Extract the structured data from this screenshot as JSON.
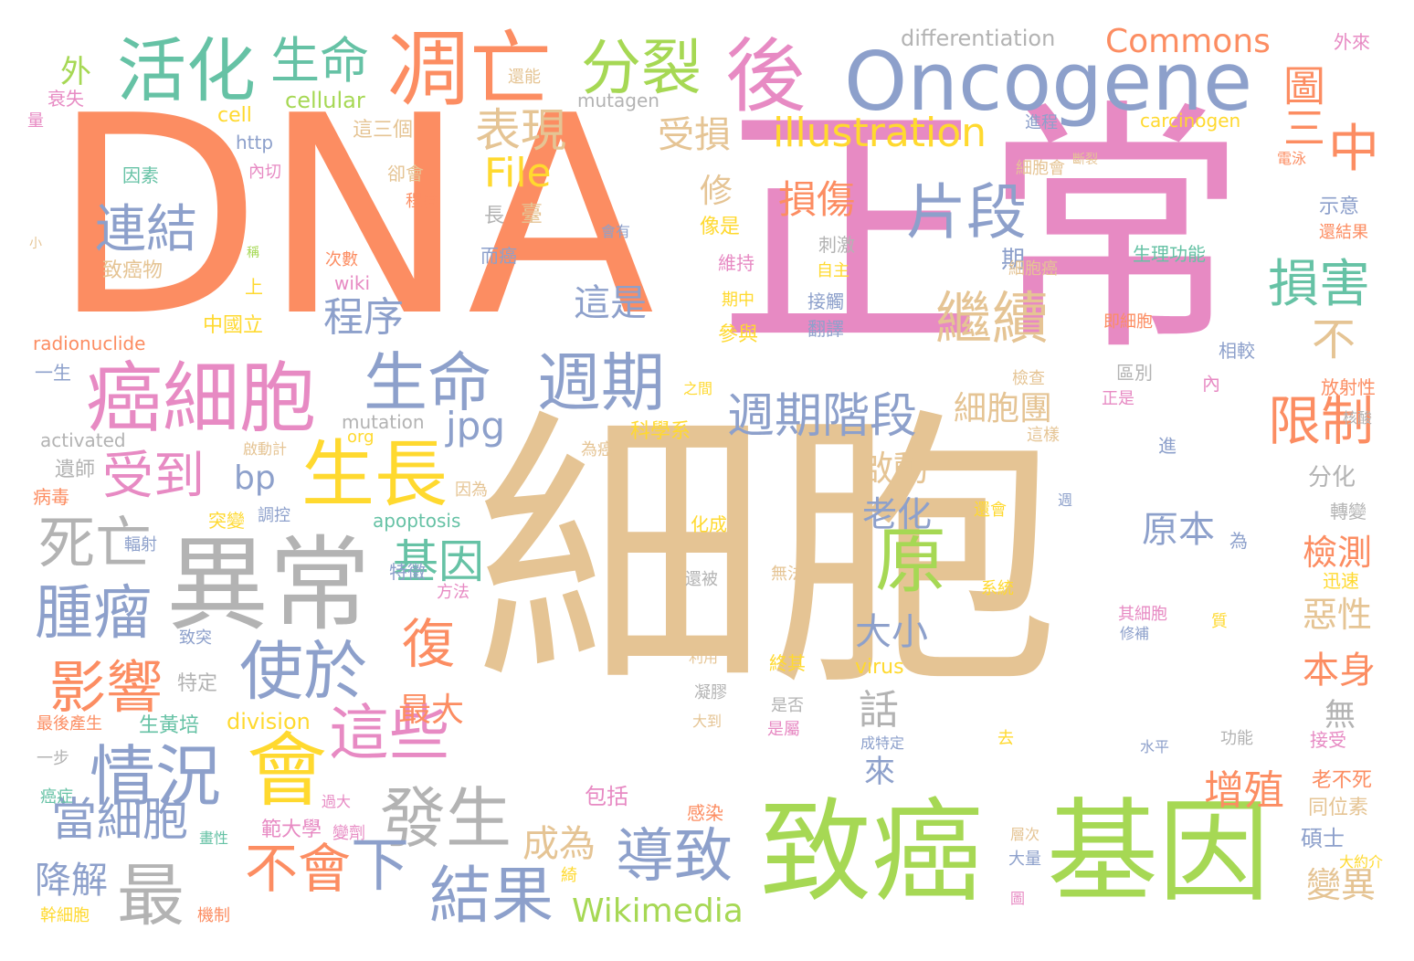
{
  "palette": {
    "orange": "#fc8d62",
    "green": "#66c2a5",
    "blue": "#8da0cb",
    "pink": "#e78ac3",
    "lime": "#a6d854",
    "yellow": "#ffd92f",
    "tan": "#e5c494",
    "gray": "#b3b3b3"
  },
  "words": [
    {
      "text": "細胞",
      "color": "tan"
    },
    {
      "text": "DNA",
      "color": "orange"
    },
    {
      "text": "正常",
      "color": "pink"
    },
    {
      "text": "致癌",
      "color": "lime"
    },
    {
      "text": "基因",
      "color": "lime"
    },
    {
      "text": "Oncogene",
      "color": "blue"
    },
    {
      "text": "異常",
      "color": "gray"
    },
    {
      "text": "癌細胞",
      "color": "pink"
    },
    {
      "text": "凋亡",
      "color": "orange"
    },
    {
      "text": "活化",
      "color": "green"
    },
    {
      "text": "後",
      "color": "pink"
    },
    {
      "text": "生命",
      "color": "blue"
    },
    {
      "text": "週期",
      "color": "blue"
    },
    {
      "text": "會",
      "color": "yellow"
    },
    {
      "text": "使於",
      "color": "blue"
    },
    {
      "text": "生長",
      "color": "yellow"
    },
    {
      "text": "情況",
      "color": "blue"
    },
    {
      "text": "發生",
      "color": "gray"
    },
    {
      "text": "這些",
      "color": "pink"
    },
    {
      "text": "結果",
      "color": "blue"
    },
    {
      "text": "導致",
      "color": "blue"
    },
    {
      "text": "最",
      "color": "gray"
    },
    {
      "text": "不會",
      "color": "orange"
    },
    {
      "text": "下",
      "color": "blue"
    },
    {
      "text": "腫瘤",
      "color": "blue"
    },
    {
      "text": "影響",
      "color": "orange"
    },
    {
      "text": "死亡",
      "color": "gray"
    },
    {
      "text": "受到",
      "color": "pink"
    },
    {
      "text": "原",
      "color": "lime"
    },
    {
      "text": "片段",
      "color": "blue"
    },
    {
      "text": "繼續",
      "color": "tan"
    },
    {
      "text": "週期階段",
      "color": "blue"
    },
    {
      "text": "限制",
      "color": "orange"
    },
    {
      "text": "損害",
      "color": "green"
    },
    {
      "text": "分裂",
      "color": "lime"
    },
    {
      "text": "生命",
      "color": "green"
    },
    {
      "text": "表現",
      "color": "tan"
    },
    {
      "text": "illustration",
      "color": "yellow"
    },
    {
      "text": "連結",
      "color": "blue"
    },
    {
      "text": "中",
      "color": "orange"
    },
    {
      "text": "File",
      "color": "yellow"
    },
    {
      "text": "jpg",
      "color": "blue"
    },
    {
      "text": "Wikimedia",
      "color": "lime"
    },
    {
      "text": "Commons",
      "color": "orange"
    },
    {
      "text": "基因",
      "color": "green"
    },
    {
      "text": "復",
      "color": "orange"
    },
    {
      "text": "當細胞",
      "color": "blue"
    },
    {
      "text": "圖三",
      "color": "orange"
    },
    {
      "text": "損傷",
      "color": "orange"
    },
    {
      "text": "不",
      "color": "tan"
    },
    {
      "text": "受損",
      "color": "tan"
    },
    {
      "text": "增殖",
      "color": "orange"
    },
    {
      "text": "程序",
      "color": "blue"
    },
    {
      "text": "這是",
      "color": "blue"
    },
    {
      "text": "細胞團",
      "color": "tan"
    },
    {
      "text": "原本",
      "color": "blue"
    },
    {
      "text": "檢測",
      "color": "orange"
    },
    {
      "text": "惡性",
      "color": "tan"
    },
    {
      "text": "本身",
      "color": "orange"
    },
    {
      "text": "大小",
      "color": "blue"
    },
    {
      "text": "最大",
      "color": "orange"
    },
    {
      "text": "老化",
      "color": "blue"
    },
    {
      "text": "啟動",
      "color": "tan"
    },
    {
      "text": "話",
      "color": "gray"
    },
    {
      "text": "成為",
      "color": "tan"
    },
    {
      "text": "降解",
      "color": "blue"
    },
    {
      "text": "變異",
      "color": "tan"
    },
    {
      "text": "bp",
      "color": "blue"
    },
    {
      "text": "外",
      "color": "lime"
    },
    {
      "text": "修",
      "color": "tan"
    },
    {
      "text": "來",
      "color": "blue"
    },
    {
      "text": "無",
      "color": "gray"
    },
    {
      "text": "分化",
      "color": "gray"
    },
    {
      "text": "differentiation",
      "color": "gray"
    },
    {
      "text": "cellular",
      "color": "lime"
    },
    {
      "text": "cell",
      "color": "yellow"
    },
    {
      "text": "http",
      "color": "blue"
    },
    {
      "text": "carcinogen",
      "color": "yellow"
    },
    {
      "text": "mutagen",
      "color": "gray"
    },
    {
      "text": "apoptosis",
      "color": "green"
    },
    {
      "text": "division",
      "color": "yellow"
    },
    {
      "text": "virus",
      "color": "yellow"
    },
    {
      "text": "mutation",
      "color": "gray"
    },
    {
      "text": "activated",
      "color": "gray"
    },
    {
      "text": "radionuclide",
      "color": "orange"
    },
    {
      "text": "wiki",
      "color": "pink"
    },
    {
      "text": "org",
      "color": "yellow"
    },
    {
      "text": "致癌物",
      "color": "tan"
    },
    {
      "text": "中國立",
      "color": "yellow"
    },
    {
      "text": "科學系",
      "color": "yellow"
    },
    {
      "text": "範大學",
      "color": "pink"
    },
    {
      "text": "生黃培",
      "color": "green"
    },
    {
      "text": "這三個",
      "color": "tan"
    },
    {
      "text": "像是",
      "color": "yellow"
    },
    {
      "text": "維持",
      "color": "pink"
    },
    {
      "text": "期中",
      "color": "yellow"
    },
    {
      "text": "參與",
      "color": "yellow"
    },
    {
      "text": "接觸",
      "color": "blue"
    },
    {
      "text": "翻譯",
      "color": "blue"
    },
    {
      "text": "刺激",
      "color": "gray"
    },
    {
      "text": "自主",
      "color": "yellow"
    },
    {
      "text": "期",
      "color": "blue"
    },
    {
      "text": "細胞會",
      "color": "tan"
    },
    {
      "text": "細胞癌",
      "color": "tan"
    },
    {
      "text": "生理功能",
      "color": "green"
    },
    {
      "text": "即細胞",
      "color": "orange"
    },
    {
      "text": "相較",
      "color": "blue"
    },
    {
      "text": "區別",
      "color": "gray"
    },
    {
      "text": "檢查",
      "color": "tan"
    },
    {
      "text": "正是",
      "color": "pink"
    },
    {
      "text": "這樣",
      "color": "tan"
    },
    {
      "text": "放射性",
      "color": "orange"
    },
    {
      "text": "核酸",
      "color": "gray"
    },
    {
      "text": "示意",
      "color": "blue"
    },
    {
      "text": "還結果",
      "color": "orange"
    },
    {
      "text": "外來",
      "color": "pink"
    },
    {
      "text": "進程",
      "color": "blue"
    },
    {
      "text": "電泳",
      "color": "orange"
    },
    {
      "text": "轉變",
      "color": "gray"
    },
    {
      "text": "迅速",
      "color": "yellow"
    },
    {
      "text": "老不死",
      "color": "orange"
    },
    {
      "text": "同位素",
      "color": "tan"
    },
    {
      "text": "碩士",
      "color": "blue"
    },
    {
      "text": "大約介",
      "color": "yellow"
    },
    {
      "text": "接受",
      "color": "pink"
    },
    {
      "text": "功能",
      "color": "gray"
    },
    {
      "text": "水平",
      "color": "blue"
    },
    {
      "text": "層次",
      "color": "tan"
    },
    {
      "text": "大量",
      "color": "blue"
    },
    {
      "text": "其細胞",
      "color": "pink"
    },
    {
      "text": "修補",
      "color": "blue"
    },
    {
      "text": "系統",
      "color": "yellow"
    },
    {
      "text": "還會",
      "color": "yellow"
    },
    {
      "text": "終其",
      "color": "yellow"
    },
    {
      "text": "是否",
      "color": "gray"
    },
    {
      "text": "是屬",
      "color": "pink"
    },
    {
      "text": "成特定",
      "color": "blue"
    },
    {
      "text": "無法",
      "color": "tan"
    },
    {
      "text": "還被",
      "color": "gray"
    },
    {
      "text": "化成",
      "color": "yellow"
    },
    {
      "text": "利用",
      "color": "tan"
    },
    {
      "text": "凝膠",
      "color": "gray"
    },
    {
      "text": "大到",
      "color": "tan"
    },
    {
      "text": "感染",
      "color": "orange"
    },
    {
      "text": "包括",
      "color": "pink"
    },
    {
      "text": "特定",
      "color": "gray"
    },
    {
      "text": "方法",
      "color": "pink"
    },
    {
      "text": "特徵",
      "color": "blue"
    },
    {
      "text": "突變",
      "color": "yellow"
    },
    {
      "text": "調控",
      "color": "blue"
    },
    {
      "text": "啟動計",
      "color": "tan"
    },
    {
      "text": "因為",
      "color": "tan"
    },
    {
      "text": "為癌",
      "color": "tan"
    },
    {
      "text": "之間",
      "color": "yellow"
    },
    {
      "text": "而癌",
      "color": "blue"
    },
    {
      "text": "會有",
      "color": "blue"
    },
    {
      "text": "次數",
      "color": "orange"
    },
    {
      "text": "上",
      "color": "yellow"
    },
    {
      "text": "長",
      "color": "gray"
    },
    {
      "text": "臺",
      "color": "tan"
    },
    {
      "text": "程度",
      "color": "orange"
    },
    {
      "text": "卻會",
      "color": "tan"
    },
    {
      "text": "內切",
      "color": "pink"
    },
    {
      "text": "因素",
      "color": "green"
    },
    {
      "text": "還能",
      "color": "tan"
    },
    {
      "text": "衰失",
      "color": "pink"
    },
    {
      "text": "量",
      "color": "pink"
    },
    {
      "text": "一生",
      "color": "blue"
    },
    {
      "text": "病毒",
      "color": "orange"
    },
    {
      "text": "遺師",
      "color": "gray"
    },
    {
      "text": "輻射",
      "color": "blue"
    },
    {
      "text": "致突",
      "color": "blue"
    },
    {
      "text": "最後產生",
      "color": "orange"
    },
    {
      "text": "一步",
      "color": "gray"
    },
    {
      "text": "癌症",
      "color": "green"
    },
    {
      "text": "幹細胞",
      "color": "yellow"
    },
    {
      "text": "機制",
      "color": "orange"
    },
    {
      "text": "變劑",
      "color": "pink"
    },
    {
      "text": "過大",
      "color": "pink"
    },
    {
      "text": "畫性",
      "color": "green"
    },
    {
      "text": "綺",
      "color": "yellow"
    },
    {
      "text": "斷裂",
      "color": "tan"
    },
    {
      "text": "為",
      "color": "blue"
    },
    {
      "text": "進",
      "color": "blue"
    },
    {
      "text": "內",
      "color": "pink"
    },
    {
      "text": "週",
      "color": "blue"
    },
    {
      "text": "去",
      "color": "yellow"
    },
    {
      "text": "質",
      "color": "yellow"
    },
    {
      "text": "圖",
      "color": "pink"
    },
    {
      "text": "小",
      "color": "tan"
    },
    {
      "text": "稱",
      "color": "lime"
    }
  ]
}
